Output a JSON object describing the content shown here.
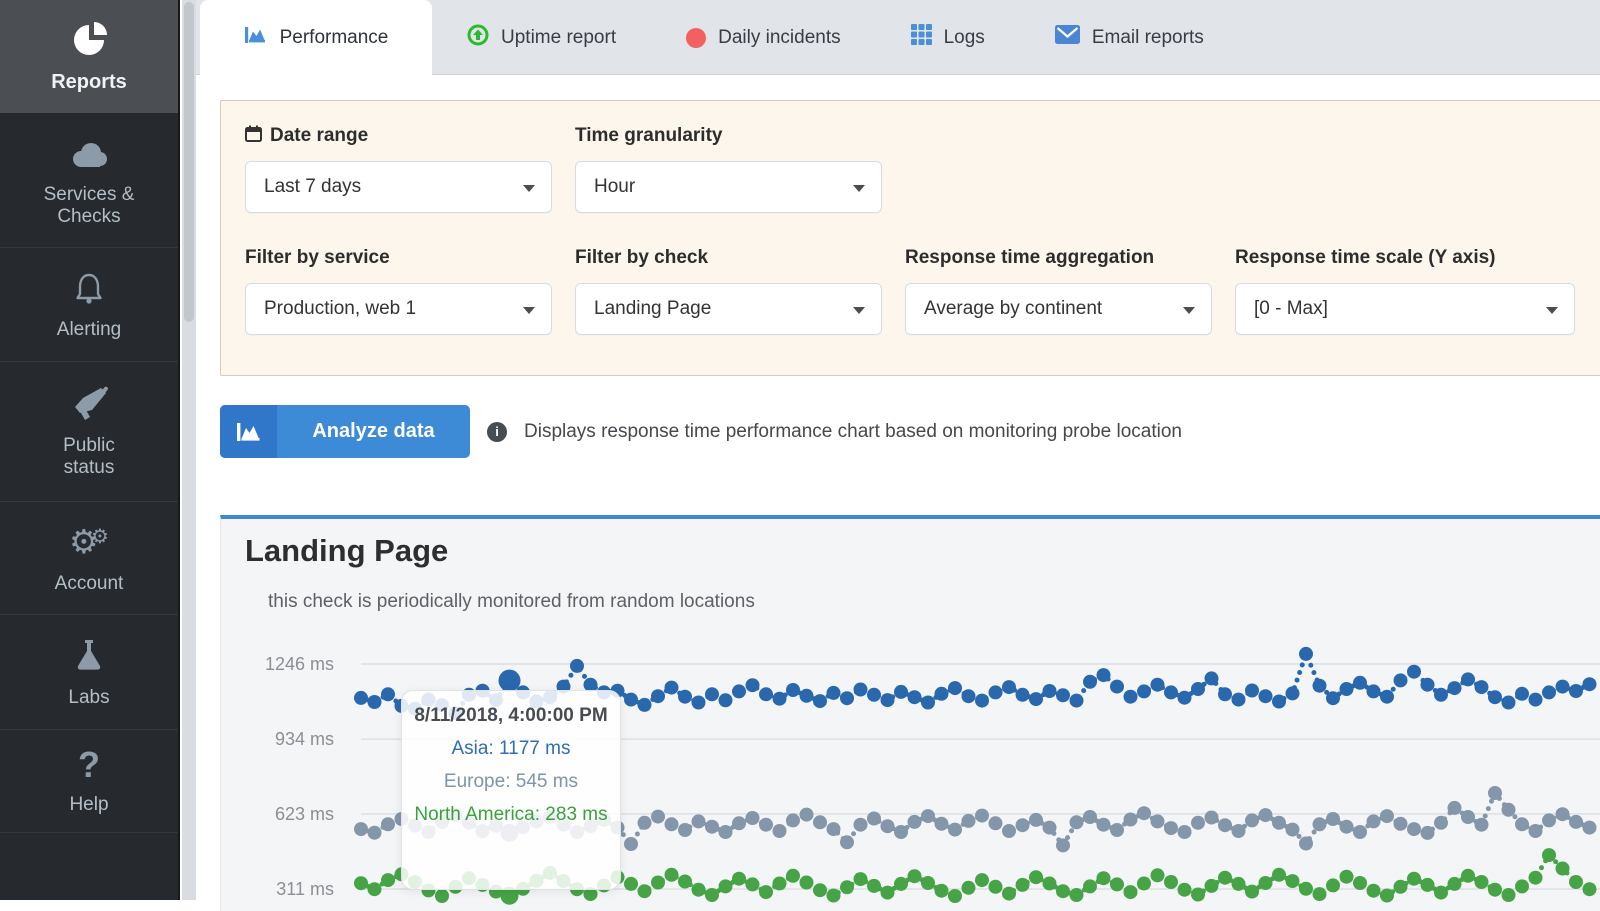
{
  "colors": {
    "accent_blue": "#3d8ad6",
    "panel_cream": "#fcf6ec",
    "sidebar_dark": "#26292d",
    "series_asia": "#2a68ae",
    "series_europe": "#8496a9",
    "series_north_america": "#46a446"
  },
  "sidebar": {
    "items": [
      {
        "label": "Reports",
        "icon": "pie-chart-icon",
        "active": true
      },
      {
        "label": "Services &\nChecks",
        "icon": "cloud-icon",
        "active": false
      },
      {
        "label": "Alerting",
        "icon": "bell-icon",
        "active": false
      },
      {
        "label": "Public\nstatus",
        "icon": "megaphone-icon",
        "active": false
      },
      {
        "label": "Account",
        "icon": "gears-icon",
        "active": false
      },
      {
        "label": "Labs",
        "icon": "flask-icon",
        "active": false
      },
      {
        "label": "Help",
        "icon": "question-icon",
        "active": false
      }
    ]
  },
  "tabs": {
    "items": [
      {
        "label": "Performance",
        "icon": "area-chart-icon",
        "active": true
      },
      {
        "label": "Uptime report",
        "icon": "uptime-arrow-icon",
        "active": false
      },
      {
        "label": "Daily incidents",
        "icon": "incident-dot-icon",
        "active": false
      },
      {
        "label": "Logs",
        "icon": "table-grid-icon",
        "active": false
      },
      {
        "label": "Email reports",
        "icon": "envelope-icon",
        "active": false
      }
    ]
  },
  "filters": {
    "rows": [
      [
        {
          "label": "Date range",
          "icon": "calendar-icon",
          "value": "Last 7 days"
        },
        {
          "label": "Time granularity",
          "value": "Hour"
        }
      ],
      [
        {
          "label": "Filter by service",
          "value": "Production, web 1"
        },
        {
          "label": "Filter by check",
          "value": "Landing Page"
        },
        {
          "label": "Response time aggregation",
          "value": "Average by continent"
        },
        {
          "label": "Response time scale (Y axis)",
          "value": "[0 - Max]"
        }
      ]
    ]
  },
  "analyze": {
    "button_label": "Analyze data",
    "info_text": "Displays response time performance chart based on monitoring probe location"
  },
  "chart_card": {
    "title": "Landing Page",
    "subtitle": "this check is periodically monitored from random locations"
  },
  "chart_data": {
    "type": "line",
    "style": "dotted-with-markers",
    "unit": "ms",
    "y_axis": {
      "ticks": [
        1246,
        934,
        623,
        311
      ],
      "tick_labels": [
        "1246 ms",
        "934 ms",
        "623 ms",
        "311 ms"
      ],
      "grid": true
    },
    "hover_index": 11,
    "tooltip": {
      "title": "8/11/2018, 4:00:00 PM",
      "rows": [
        {
          "text": "Asia: 1177 ms",
          "color": "#2f6eb5"
        },
        {
          "text": "Europe: 545 ms",
          "color": "#8094a8"
        },
        {
          "text": "North America: 283 ms",
          "color": "#3aa23a"
        }
      ]
    },
    "series": [
      {
        "name": "Asia",
        "color": "#2a68ae",
        "hover_radius": 11,
        "values": [
          1105,
          1088,
          1120,
          1072,
          1060,
          1098,
          1075,
          1042,
          1118,
          1135,
          1096,
          1177,
          1128,
          1090,
          1108,
          1152,
          1238,
          1160,
          1128,
          1135,
          1098,
          1076,
          1112,
          1148,
          1110,
          1086,
          1120,
          1095,
          1132,
          1158,
          1120,
          1102,
          1138,
          1114,
          1092,
          1126,
          1104,
          1140,
          1118,
          1096,
          1130,
          1108,
          1086,
          1122,
          1146,
          1112,
          1094,
          1128,
          1150,
          1118,
          1100,
          1134,
          1116,
          1094,
          1172,
          1200,
          1152,
          1110,
          1132,
          1160,
          1128,
          1106,
          1142,
          1186,
          1120,
          1098,
          1136,
          1112,
          1090,
          1124,
          1288,
          1156,
          1104,
          1142,
          1168,
          1132,
          1110,
          1178,
          1214,
          1160,
          1118,
          1146,
          1182,
          1150,
          1108,
          1086,
          1122,
          1098,
          1128,
          1152,
          1134,
          1162
        ]
      },
      {
        "name": "Europe",
        "color": "#8496a9",
        "hover_radius": 9,
        "values": [
          560,
          545,
          580,
          602,
          575,
          548,
          590,
          618,
          586,
          552,
          574,
          545,
          568,
          592,
          610,
          578,
          548,
          572,
          598,
          566,
          498,
          586,
          612,
          580,
          556,
          592,
          570,
          548,
          584,
          606,
          578,
          552,
          596,
          620,
          588,
          560,
          505,
          578,
          604,
          572,
          548,
          590,
          614,
          582,
          558,
          594,
          616,
          584,
          552,
          576,
          598,
          566,
          492,
          588,
          610,
          578,
          556,
          600,
          626,
          592,
          564,
          548,
          586,
          608,
          576,
          552,
          596,
          618,
          586,
          558,
          500,
          580,
          602,
          570,
          548,
          592,
          614,
          582,
          560,
          544,
          586,
          648,
          610,
          578,
          710,
          640,
          580,
          552,
          596,
          622,
          590,
          566
        ]
      },
      {
        "name": "North America",
        "color": "#46a446",
        "hover_radius": 9,
        "values": [
          335,
          310,
          348,
          372,
          340,
          305,
          282,
          320,
          356,
          328,
          300,
          283,
          312,
          345,
          378,
          344,
          310,
          290,
          326,
          360,
          332,
          302,
          338,
          370,
          342,
          308,
          286,
          322,
          354,
          330,
          298,
          334,
          366,
          338,
          306,
          284,
          318,
          352,
          324,
          296,
          332,
          364,
          336,
          304,
          282,
          316,
          348,
          320,
          292,
          328,
          360,
          334,
          302,
          286,
          322,
          356,
          330,
          298,
          334,
          368,
          340,
          308,
          288,
          324,
          358,
          332,
          300,
          336,
          370,
          344,
          312,
          290,
          326,
          362,
          336,
          304,
          284,
          320,
          354,
          328,
          296,
          332,
          366,
          340,
          308,
          286,
          322,
          358,
          452,
          396,
          340,
          310
        ]
      }
    ]
  }
}
